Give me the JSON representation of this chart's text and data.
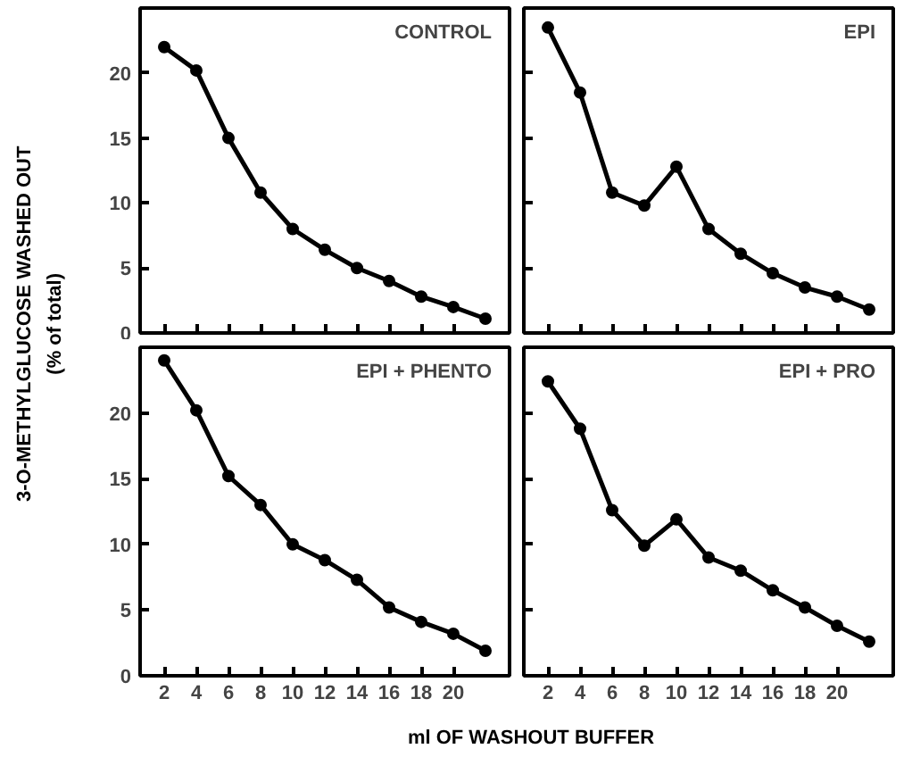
{
  "chart_data": [
    {
      "type": "line",
      "title": "CONTROL",
      "ylabel": "3-O-METHYLGLUCOSE WASHED OUT\n(% of total)",
      "x": [
        2,
        4,
        6,
        8,
        10,
        12,
        14,
        16,
        18,
        20,
        22
      ],
      "series": [
        {
          "color": "#000000",
          "values": [
            22,
            20.2,
            15,
            10.8,
            8,
            6.4,
            5,
            4,
            2.8,
            2,
            1.1
          ]
        }
      ],
      "xlim": [
        0.5,
        23.5
      ],
      "xticks": [
        2,
        4,
        6,
        8,
        10,
        12,
        14,
        16,
        18,
        20
      ],
      "ylim": [
        0,
        25
      ],
      "yticks": [
        0,
        5,
        10,
        15,
        20
      ],
      "tick_labels": "y",
      "marker": "circle",
      "line_style": "solid",
      "grid": false
    },
    {
      "type": "line",
      "title": "EPI",
      "x": [
        2,
        4,
        6,
        8,
        10,
        12,
        14,
        16,
        18,
        20,
        22
      ],
      "series": [
        {
          "color": "#000000",
          "values": [
            23.5,
            18.5,
            10.8,
            9.8,
            12.8,
            8,
            6.1,
            4.6,
            3.5,
            2.8,
            1.8
          ]
        }
      ],
      "xlim": [
        0.5,
        23.5
      ],
      "xticks": [
        2,
        4,
        6,
        8,
        10,
        12,
        14,
        16,
        18,
        20
      ],
      "ylim": [
        0,
        25
      ],
      "yticks": [
        0,
        5,
        10,
        15,
        20
      ],
      "tick_labels": false,
      "marker": "circle",
      "line_style": "solid",
      "grid": false
    },
    {
      "type": "line",
      "title": "EPI + PHENTO",
      "xlabel": "ml OF WASHOUT BUFFER",
      "x": [
        2,
        4,
        6,
        8,
        10,
        12,
        14,
        16,
        18,
        20,
        22
      ],
      "series": [
        {
          "color": "#000000",
          "values": [
            24,
            20.2,
            15.2,
            13,
            10,
            8.8,
            7.3,
            5.2,
            4.1,
            3.2,
            1.9
          ]
        }
      ],
      "xlim": [
        0.5,
        23.5
      ],
      "xticks": [
        2,
        4,
        6,
        8,
        10,
        12,
        14,
        16,
        18,
        20
      ],
      "ylim": [
        0,
        25
      ],
      "yticks": [
        0,
        5,
        10,
        15,
        20
      ],
      "marker": "circle",
      "line_style": "solid",
      "grid": false
    },
    {
      "type": "line",
      "title": "EPI + PRO",
      "x": [
        2,
        4,
        6,
        8,
        10,
        12,
        14,
        16,
        18,
        20,
        22
      ],
      "series": [
        {
          "color": "#000000",
          "values": [
            22.4,
            18.8,
            12.6,
            9.9,
            11.9,
            9,
            8,
            6.5,
            5.2,
            3.8,
            2.6
          ]
        }
      ],
      "xlim": [
        0.5,
        23.5
      ],
      "xticks": [
        2,
        4,
        6,
        8,
        10,
        12,
        14,
        16,
        18,
        20
      ],
      "ylim": [
        0,
        25
      ],
      "yticks": [
        0,
        5,
        10,
        15,
        20
      ],
      "tick_labels": "x",
      "marker": "circle",
      "line_style": "solid",
      "grid": false
    }
  ]
}
